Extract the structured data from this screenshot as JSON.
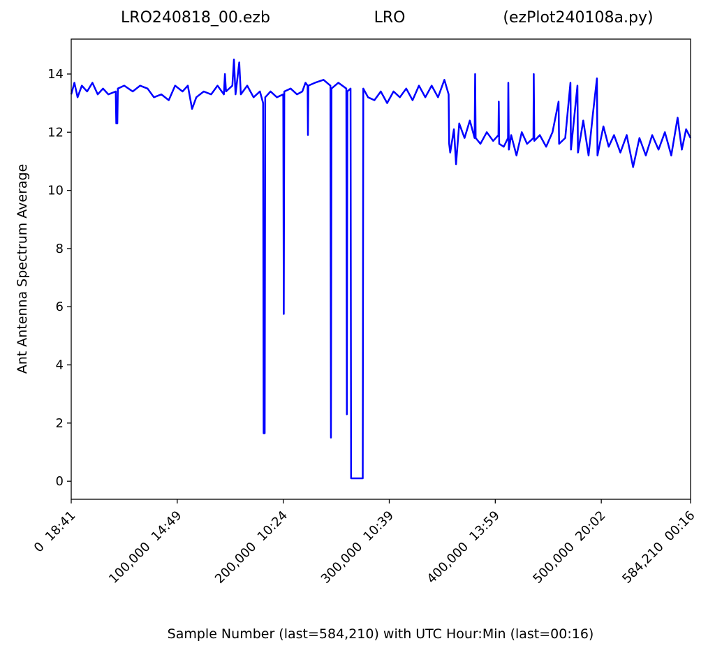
{
  "chart_data": {
    "type": "line",
    "title_left": "LRO240818_00.ezb",
    "title_center": "LRO",
    "title_right": "(ezPlot240108a.py)",
    "xlabel": "Sample Number (last=584,210) with UTC Hour:Min (last=00:16)",
    "ylabel": "Ant Antenna Spectrum Average",
    "xlim": [
      0,
      584210
    ],
    "ylim": [
      -0.62,
      15.2
    ],
    "xticks": [
      {
        "value": 0,
        "label": "0  18:41"
      },
      {
        "value": 100000,
        "label": "100,000  14:49"
      },
      {
        "value": 200000,
        "label": "200,000  10:24"
      },
      {
        "value": 300000,
        "label": "300,000  10:39"
      },
      {
        "value": 400000,
        "label": "400,000  13:59"
      },
      {
        "value": 500000,
        "label": "500,000  20:02"
      },
      {
        "value": 584210,
        "label": "584,210  00:16"
      }
    ],
    "yticks": [
      0,
      2,
      4,
      6,
      8,
      10,
      12,
      14
    ],
    "x": [
      0,
      3000,
      6000,
      10000,
      15000,
      20000,
      25000,
      30000,
      35000,
      42000,
      42500,
      43500,
      44000,
      50000,
      58000,
      65000,
      72000,
      78000,
      85000,
      92000,
      98000,
      105000,
      110000,
      114000,
      118000,
      125000,
      132000,
      138000,
      144000,
      145000,
      146000,
      152000,
      153500,
      155000,
      158500,
      160000,
      166000,
      172000,
      178000,
      181000,
      181500,
      182500,
      183000,
      188000,
      194000,
      200000,
      200500,
      201000,
      207000,
      213000,
      218000,
      221000,
      223000,
      223300,
      223700,
      230000,
      238000,
      244500,
      245000,
      245500,
      252000,
      259500,
      260000,
      260500,
      263500,
      264000,
      275000,
      275500,
      280000,
      286000,
      292000,
      298000,
      304000,
      310000,
      316000,
      322000,
      328000,
      334000,
      340000,
      346000,
      352000,
      356000,
      356500,
      357500,
      361000,
      363000,
      366000,
      371000,
      376000,
      380500,
      381000,
      381500,
      386000,
      392000,
      398000,
      403000,
      403300,
      403700,
      408000,
      412000,
      412300,
      412800,
      415000,
      420000,
      425000,
      430000,
      436000,
      436300,
      436800,
      442000,
      448000,
      454000,
      459700,
      460200,
      466000,
      470900,
      471400,
      477500,
      478000,
      483000,
      488000,
      492000,
      495900,
      496400,
      502000,
      507000,
      512000,
      518000,
      524000,
      530000,
      536000,
      542000,
      548000,
      554000,
      560000,
      566000,
      572000,
      576000,
      580000,
      584210
    ],
    "series": [
      {
        "color": "#0000ff",
        "values": [
          13.3,
          13.7,
          13.2,
          13.6,
          13.4,
          13.7,
          13.3,
          13.5,
          13.3,
          13.4,
          12.3,
          12.3,
          13.5,
          13.6,
          13.4,
          13.6,
          13.5,
          13.2,
          13.3,
          13.1,
          13.6,
          13.4,
          13.6,
          12.8,
          13.2,
          13.4,
          13.3,
          13.6,
          13.3,
          14.0,
          13.4,
          13.6,
          14.5,
          13.3,
          14.4,
          13.3,
          13.6,
          13.2,
          13.4,
          13.0,
          1.65,
          1.65,
          13.2,
          13.4,
          13.2,
          13.3,
          5.75,
          13.4,
          13.5,
          13.3,
          13.4,
          13.7,
          13.6,
          11.9,
          13.6,
          13.7,
          13.8,
          13.6,
          1.5,
          13.5,
          13.7,
          13.5,
          2.3,
          13.4,
          13.5,
          0.1,
          0.1,
          13.5,
          13.2,
          13.1,
          13.4,
          13.0,
          13.4,
          13.2,
          13.5,
          13.1,
          13.6,
          13.2,
          13.6,
          13.2,
          13.8,
          13.3,
          11.6,
          11.3,
          12.1,
          10.9,
          12.3,
          11.8,
          12.4,
          11.8,
          14.0,
          11.8,
          11.6,
          12.0,
          11.7,
          11.9,
          13.05,
          11.6,
          11.5,
          11.8,
          13.7,
          11.4,
          11.9,
          11.2,
          12.0,
          11.6,
          11.8,
          14.0,
          11.7,
          11.9,
          11.5,
          12.0,
          13.05,
          11.6,
          11.8,
          13.7,
          11.4,
          13.6,
          11.3,
          12.4,
          11.2,
          12.6,
          13.85,
          11.2,
          12.2,
          11.5,
          11.9,
          11.3,
          11.9,
          10.8,
          11.8,
          11.2,
          11.9,
          11.4,
          12.0,
          11.2,
          12.5,
          11.4,
          12.1,
          11.8
        ]
      }
    ]
  }
}
